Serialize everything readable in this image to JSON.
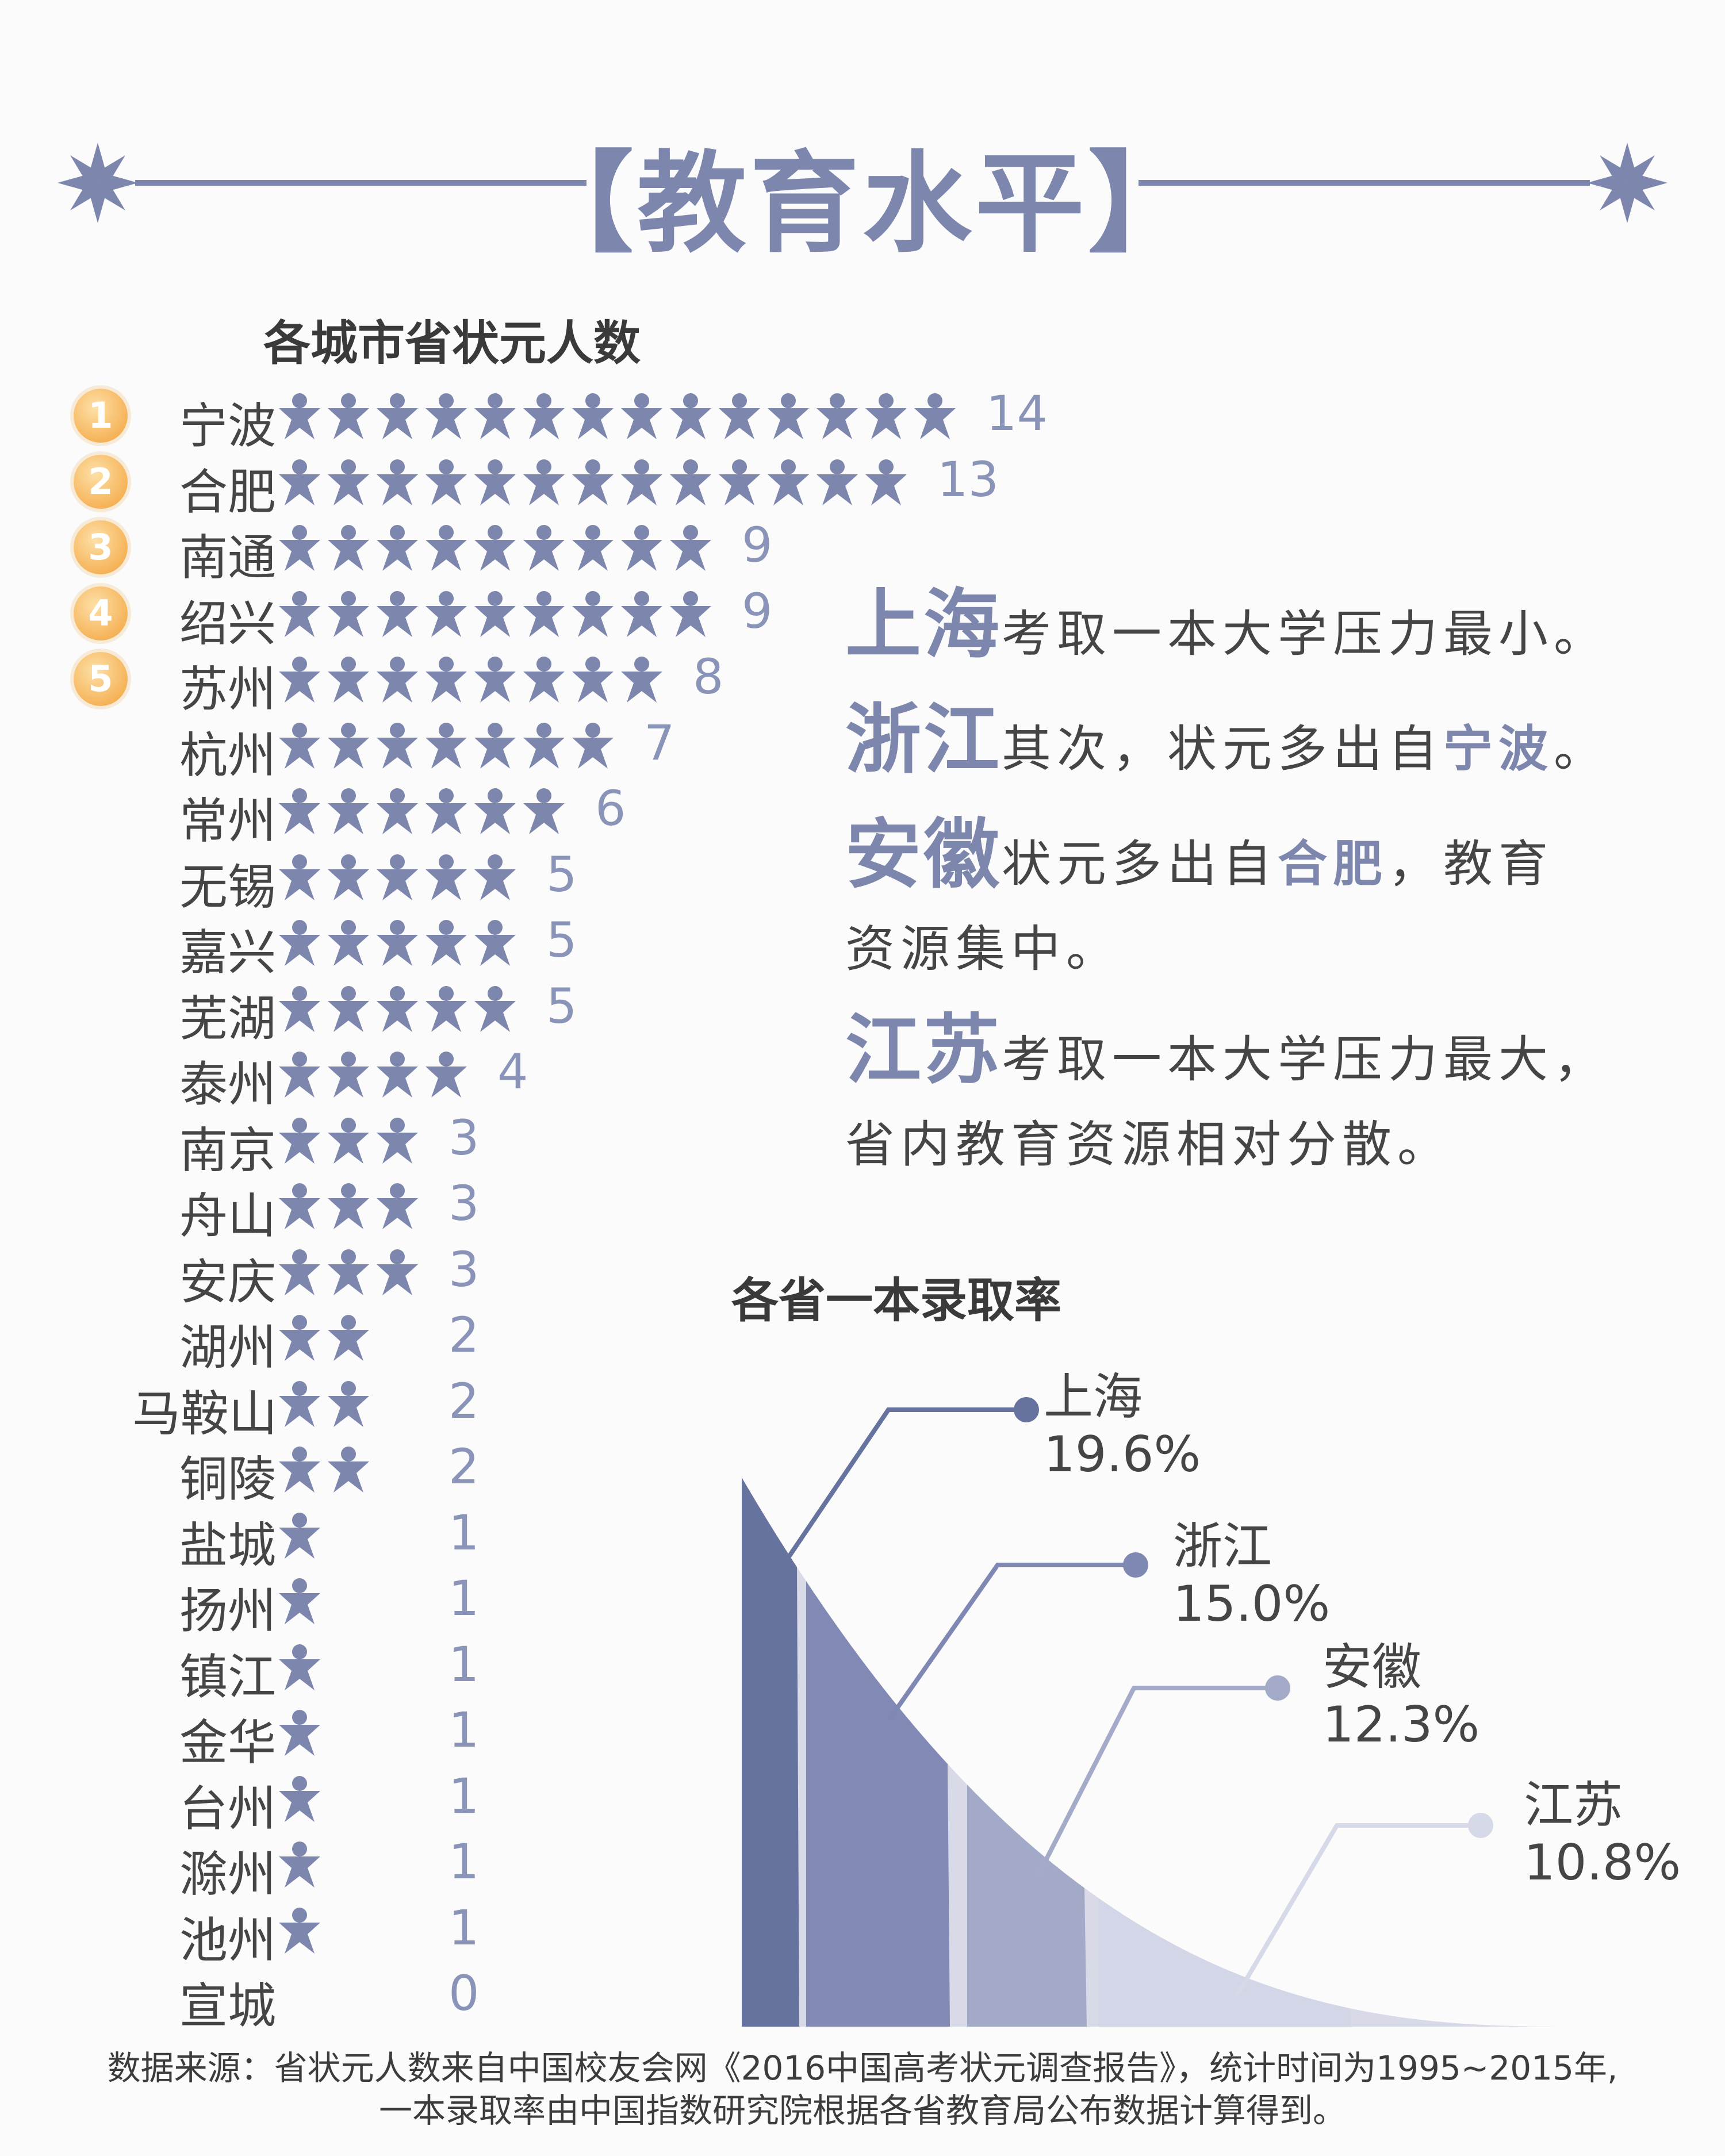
{
  "header": {
    "title": "【教育水平】"
  },
  "colors": {
    "accent": "#7d86ad",
    "badge": "#f6b45a",
    "area_fill": "#d8dae8",
    "bar_colors": [
      "#67739f",
      "#8189b4",
      "#a3aac8",
      "#d3d6e6"
    ],
    "line_colors": [
      "#67739f",
      "#7f88b2",
      "#a4abc8",
      "#d6d9e7"
    ]
  },
  "chart_data": [
    {
      "type": "bar",
      "title": "各城市省状元人数",
      "categories": [
        "宁波",
        "合肥",
        "南通",
        "绍兴",
        "苏州",
        "杭州",
        "常州",
        "无锡",
        "嘉兴",
        "芜湖",
        "泰州",
        "南京",
        "舟山",
        "安庆",
        "湖州",
        "马鞍山",
        "铜陵",
        "盐城",
        "扬州",
        "镇江",
        "金华",
        "台州",
        "滁州",
        "池州",
        "宣城"
      ],
      "values": [
        14,
        13,
        9,
        9,
        8,
        7,
        6,
        5,
        5,
        5,
        4,
        3,
        3,
        3,
        2,
        2,
        2,
        1,
        1,
        1,
        1,
        1,
        1,
        1,
        0
      ],
      "ranks": [
        "1",
        "2",
        "3",
        "4",
        "5"
      ],
      "unit_icon": "person-icon"
    },
    {
      "type": "area",
      "title": "各省一本录取率",
      "categories": [
        "上海",
        "浙江",
        "安徽",
        "江苏"
      ],
      "values": [
        19.6,
        15.0,
        12.3,
        10.8
      ],
      "value_labels": [
        "19.6%",
        "15.0%",
        "12.3%",
        "10.8%"
      ]
    }
  ],
  "commentary": {
    "line1": {
      "prov": "上海",
      "text": "考取一本大学压力最小。"
    },
    "line2": {
      "prov": "浙江",
      "text1": "其次，状元多出自",
      "hl": "宁波",
      "text2": "。"
    },
    "line3": {
      "prov": "安徽",
      "text1": "状元多出自",
      "hl": "合肥",
      "text2": "，教育"
    },
    "line4": {
      "text": "资源集中。"
    },
    "line5": {
      "prov": "江苏",
      "text": "考取一本大学压力最大，"
    },
    "line6": {
      "text": "省内教育资源相对分散。"
    }
  },
  "footer": {
    "line1": "数据来源：省状元人数来自中国校友会网《2016中国高考状元调查报告》，统计时间为1995~2015年,",
    "line2": "一本录取率由中国指数研究院根据各省教育局公布数据计算得到。"
  }
}
